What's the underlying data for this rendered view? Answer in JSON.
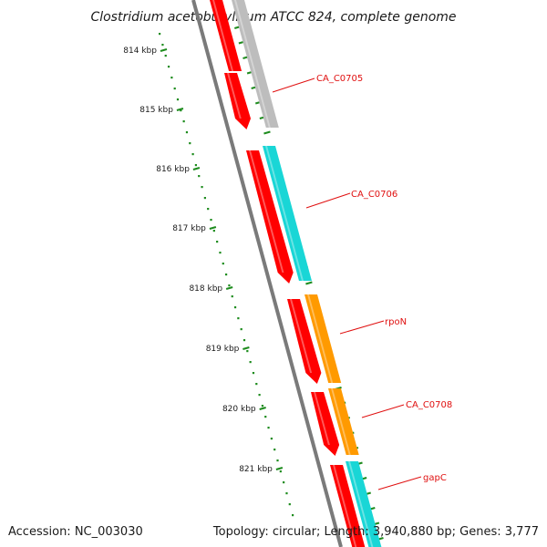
{
  "title": "Clostridium acetobutylicum ATCC 824, complete genome",
  "footer": {
    "accession": "Accession: NC_003030",
    "summary": "Topology: circular; Length: 3,940,880 bp; Genes: 3,777"
  },
  "ruler": {
    "color": "#1e8c1e",
    "ticks": [
      "814 kbp",
      "815 kbp",
      "816 kbp",
      "817 kbp",
      "818 kbp",
      "819 kbp",
      "820 kbp",
      "821 kbp"
    ]
  },
  "colors": {
    "backbone": "#7a7a7a",
    "cds": "#ff0000",
    "gene_label": "#e01010",
    "grey_feature": "#bdbdbd",
    "cyan_feature": "#19d6d6",
    "orange_feature": "#ff9a00"
  },
  "genes": [
    {
      "label": "CA_C0705",
      "feature_color": "#bdbdbd"
    },
    {
      "label": "CA_C0706",
      "feature_color": "#19d6d6"
    },
    {
      "label": "rpoN",
      "feature_color": "#ff9a00"
    },
    {
      "label": "CA_C0708",
      "feature_color": "#ff9a00"
    },
    {
      "label": "gapC",
      "feature_color": "#19d6d6"
    }
  ]
}
